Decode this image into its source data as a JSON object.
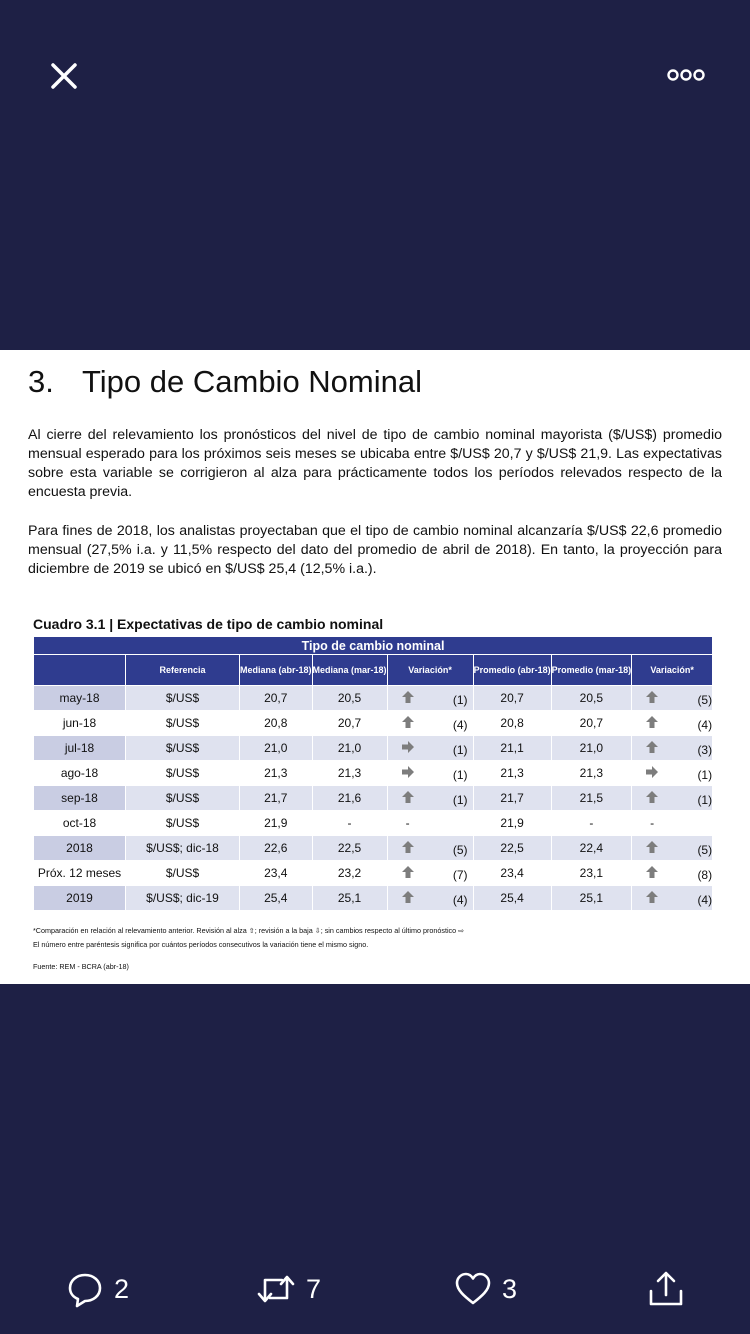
{
  "header": {
    "close_icon": "close-icon",
    "more_icon": "more-options-icon"
  },
  "document": {
    "section_number": "3.",
    "section_title": "Tipo de Cambio Nominal",
    "paragraph1": "Al cierre del relevamiento los pronósticos del nivel de tipo de cambio nominal mayorista ($/US$) promedio mensual esperado para los próximos seis meses se ubicaba entre $/US$ 20,7 y $/US$ 21,9. Las expectativas sobre esta variable se corrigieron al alza para prácticamente todos los períodos relevados respecto de la encuesta previa.",
    "paragraph2": "Para fines de 2018, los analistas proyectaban que el tipo de cambio nominal alcanzaría $/US$ 22,6 promedio mensual (27,5% i.a. y 11,5% respecto del dato del promedio de abril de 2018). En tanto, la proyección para diciembre de 2019 se ubicó en $/US$ 25,4 (12,5% i.a.).",
    "table_caption": "Cuadro 3.1 | Expectativas de tipo de cambio nominal",
    "table_super_header": "Tipo de cambio nominal",
    "columns": [
      "Referencia",
      "Mediana (abr-18)",
      "Mediana (mar-18)",
      "Variación*",
      "Promedio (abr-18)",
      "Promedio (mar-18)",
      "Variación*"
    ],
    "rows": [
      {
        "label": "may-18",
        "ref": "$/US$",
        "med_abr": "20,7",
        "med_mar": "20,5",
        "var1_icon": "up",
        "var1": "(1)",
        "prom_abr": "20,7",
        "prom_mar": "20,5",
        "var2_icon": "up",
        "var2": "(5)"
      },
      {
        "label": "jun-18",
        "ref": "$/US$",
        "med_abr": "20,8",
        "med_mar": "20,7",
        "var1_icon": "up",
        "var1": "(4)",
        "prom_abr": "20,8",
        "prom_mar": "20,7",
        "var2_icon": "up",
        "var2": "(4)"
      },
      {
        "label": "jul-18",
        "ref": "$/US$",
        "med_abr": "21,0",
        "med_mar": "21,0",
        "var1_icon": "right",
        "var1": "(1)",
        "prom_abr": "21,1",
        "prom_mar": "21,0",
        "var2_icon": "up",
        "var2": "(3)"
      },
      {
        "label": "ago-18",
        "ref": "$/US$",
        "med_abr": "21,3",
        "med_mar": "21,3",
        "var1_icon": "right",
        "var1": "(1)",
        "prom_abr": "21,3",
        "prom_mar": "21,3",
        "var2_icon": "right",
        "var2": "(1)"
      },
      {
        "label": "sep-18",
        "ref": "$/US$",
        "med_abr": "21,7",
        "med_mar": "21,6",
        "var1_icon": "up",
        "var1": "(1)",
        "prom_abr": "21,7",
        "prom_mar": "21,5",
        "var2_icon": "up",
        "var2": "(1)"
      },
      {
        "label": "oct-18",
        "ref": "$/US$",
        "med_abr": "21,9",
        "med_mar": "-",
        "var1_icon": "none",
        "var1": "-",
        "prom_abr": "21,9",
        "prom_mar": "-",
        "var2_icon": "none",
        "var2": "-"
      },
      {
        "label": "2018",
        "ref": "$/US$; dic-18",
        "med_abr": "22,6",
        "med_mar": "22,5",
        "var1_icon": "up",
        "var1": "(5)",
        "prom_abr": "22,5",
        "prom_mar": "22,4",
        "var2_icon": "up",
        "var2": "(5)"
      },
      {
        "label": "Próx. 12 meses",
        "ref": "$/US$",
        "med_abr": "23,4",
        "med_mar": "23,2",
        "var1_icon": "up",
        "var1": "(7)",
        "prom_abr": "23,4",
        "prom_mar": "23,1",
        "var2_icon": "up",
        "var2": "(8)"
      },
      {
        "label": "2019",
        "ref": "$/US$; dic-19",
        "med_abr": "25,4",
        "med_mar": "25,1",
        "var1_icon": "up",
        "var1": "(4)",
        "prom_abr": "25,4",
        "prom_mar": "25,1",
        "var2_icon": "up",
        "var2": "(4)"
      }
    ],
    "footnote1": "*Comparación en relación al relevamiento anterior. Revisión al alza ⇧; revisión a la baja ⇩; sin cambios respecto al último pronóstico ⇨",
    "footnote2": "El número entre paréntesis significa por cuántos períodos consecutivos la variación tiene el mismo signo.",
    "source": "Fuente: REM - BCRA (abr-18)"
  },
  "actions": {
    "reply_count": "2",
    "retweet_count": "7",
    "like_count": "3"
  },
  "colors": {
    "background": "#1e2045",
    "table_header": "#2f3c8f",
    "row_alt": "#dfe2ef"
  }
}
